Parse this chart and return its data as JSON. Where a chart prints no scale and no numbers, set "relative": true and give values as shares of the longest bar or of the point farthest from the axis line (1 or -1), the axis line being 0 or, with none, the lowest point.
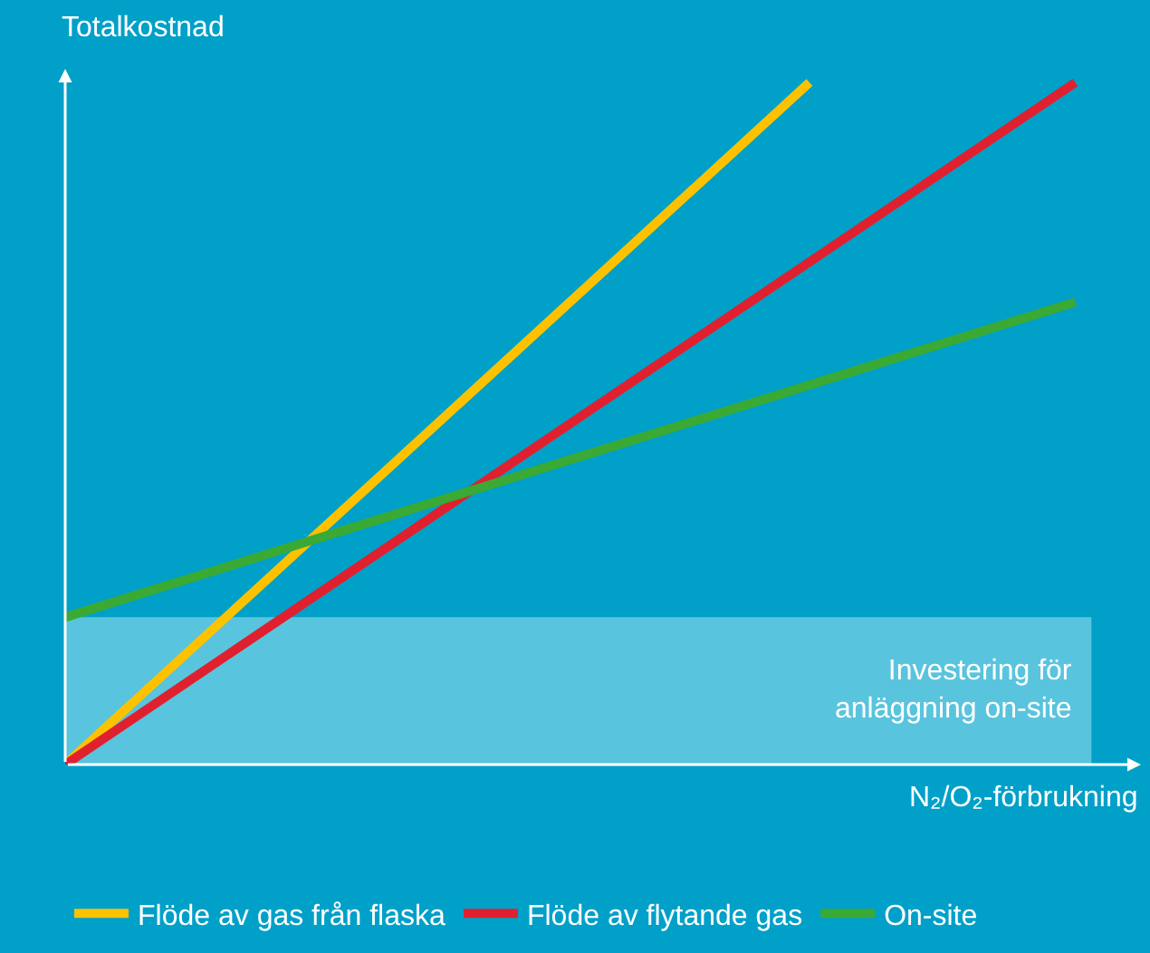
{
  "chart_data": {
    "type": "line",
    "relative": true,
    "xlabel": "N₂/O₂-förbrukning",
    "ylabel": "Totalkostnad",
    "categories": [
      null,
      null,
      null,
      null,
      null,
      null,
      null,
      null,
      null,
      null,
      null,
      null,
      null,
      null,
      null,
      null,
      null,
      null,
      null,
      null
    ],
    "series": [
      {
        "name": "Flöde av gas från flaska",
        "color": "#fcc200",
        "values": [
          0,
          null,
          null,
          null,
          null,
          null,
          null,
          null,
          null,
          null,
          null,
          null,
          null,
          null,
          1,
          null,
          null,
          null,
          null,
          null
        ]
      },
      {
        "name": "Flöde av flytande gas",
        "color": "#e0202f",
        "values": [
          0,
          null,
          null,
          null,
          null,
          null,
          null,
          null,
          null,
          null,
          null,
          null,
          null,
          null,
          null,
          null,
          null,
          null,
          null,
          1
        ]
      },
      {
        "name": "On-site",
        "color": "#3aaa35",
        "values": [
          0.216,
          null,
          null,
          null,
          null,
          null,
          null,
          null,
          null,
          null,
          null,
          null,
          null,
          null,
          null,
          null,
          null,
          null,
          null,
          0.678
        ]
      }
    ],
    "bands": [
      {
        "axis": "y",
        "from": 0,
        "to": 0.216,
        "label": "Investering för\nanläggning on-site",
        "color": "#7fd3e6"
      }
    ],
    "legend": "bottom",
    "grid": false,
    "tick_labels": false,
    "line_style": "solid"
  }
}
